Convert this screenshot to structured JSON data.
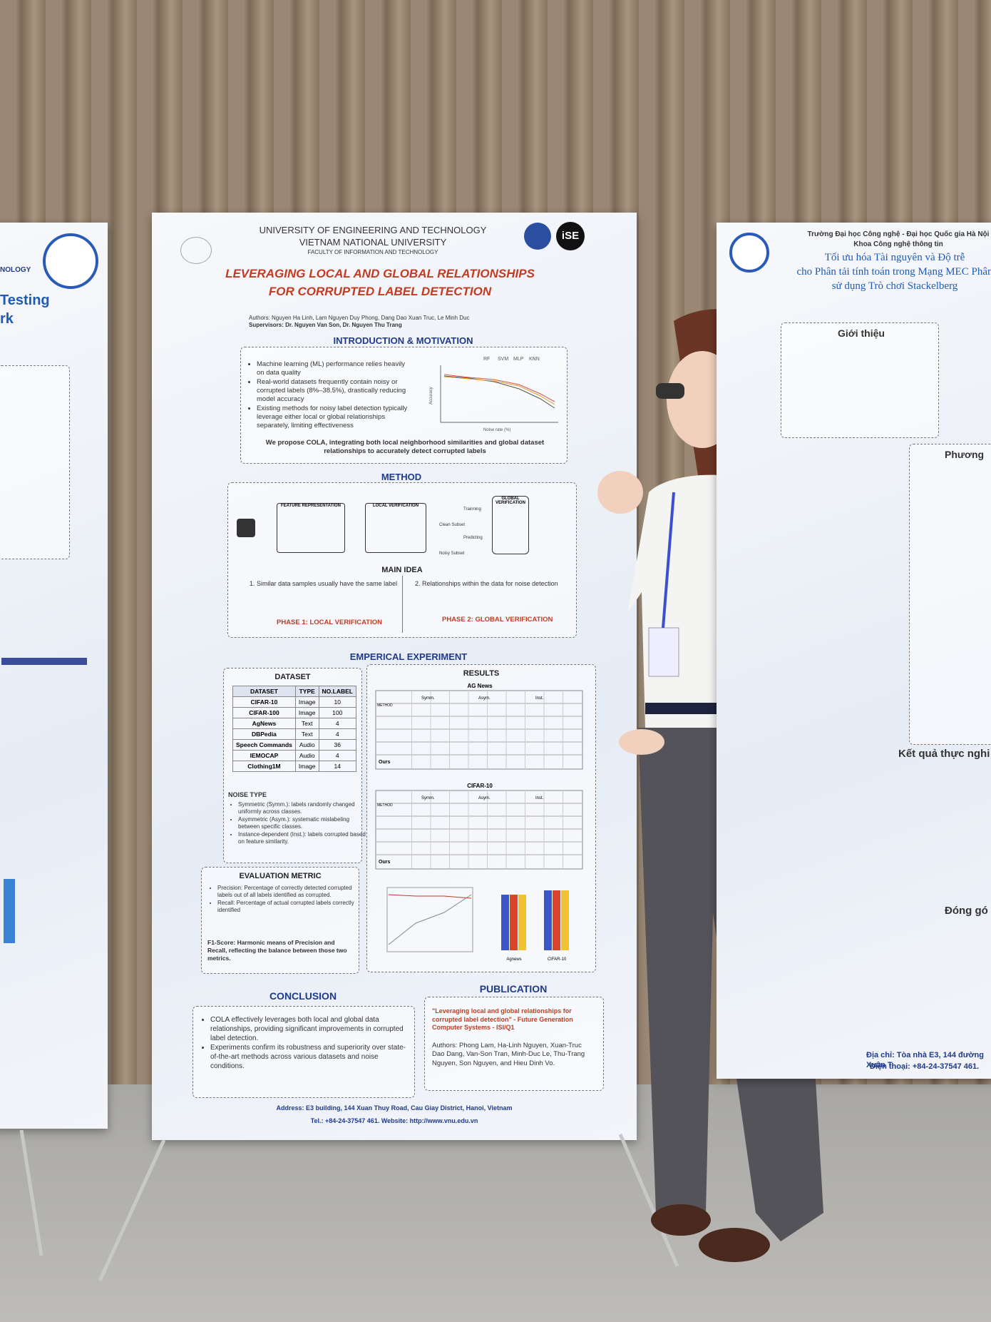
{
  "left_poster": {
    "org": "NOLOGY",
    "title_lines": [
      "Testing",
      "rk"
    ]
  },
  "main_poster": {
    "header": {
      "university": "UNIVERSITY OF ENGINEERING AND TECHNOLOGY",
      "parent": "VIETNAM NATIONAL UNIVERSITY",
      "faculty": "FACULTY OF INFORMATION AND TECHNOLOGY",
      "logo": "iSE"
    },
    "title_lines": [
      "LEVERAGING LOCAL AND GLOBAL RELATIONSHIPS",
      "FOR CORRUPTED LABEL DETECTION"
    ],
    "authors": "Authors: Nguyen Ha Linh, Lam Nguyen Duy Phong, Dang Dao Xuan Truc, Le Minh Duc",
    "supervisors": "Supervisors: Dr. Nguyen Van Son, Dr. Nguyen Thu Trang",
    "intro": {
      "heading": "INTRODUCTION & MOTIVATION",
      "bullets": [
        "Machine learning (ML) performance relies heavily on data quality",
        "Real-world datasets frequently contain noisy or corrupted labels (8%–38.5%), drastically reducing model accuracy",
        "Existing methods for noisy label detection typically leverage either local or global relationships separately, limiting effectiveness"
      ],
      "chart_legend": [
        "RF",
        "SVM",
        "MLP",
        "KNN"
      ],
      "chart_xlabel": "Noise rate (%)",
      "chart_ylabel": "Accuracy",
      "proposal": "We propose COLA, integrating both local neighborhood similarities and global dataset relationships to accurately detect corrupted labels"
    },
    "method": {
      "heading": "METHOD",
      "blocks": [
        "FEATURE REPRESENTATION",
        "LOCAL VERIFICATION",
        "GLOBAL VERIFICATION"
      ],
      "subsets": [
        "Clean Subset",
        "Noisy Subset"
      ],
      "arrows": [
        "Trainning",
        "Predicting"
      ],
      "main_idea": "MAIN IDEA",
      "ideas": [
        "1. Similar data samples usually have the same label",
        "2. Relationships within the data for noise detection"
      ],
      "phases": [
        "PHASE 1: LOCAL VERIFICATION",
        "PHASE 2: GLOBAL VERIFICATION"
      ]
    },
    "experiment": {
      "heading": "EMPERICAL EXPERIMENT",
      "dataset": {
        "heading": "DATASET",
        "columns": [
          "DATASET",
          "TYPE",
          "NO.LABEL"
        ],
        "rows": [
          [
            "CIFAR-10",
            "Image",
            "10"
          ],
          [
            "CIFAR-100",
            "Image",
            "100"
          ],
          [
            "AgNews",
            "Text",
            "4"
          ],
          [
            "DBPedia",
            "Text",
            "4"
          ],
          [
            "Speech Commands",
            "Audio",
            "36"
          ],
          [
            "IEMOCAP",
            "Audio",
            "4"
          ],
          [
            "Clothing1M",
            "Image",
            "14"
          ]
        ]
      },
      "noise": {
        "heading": "NOISE TYPE",
        "items": [
          "Symmetric (Symm.): labels randomly changed uniformly across classes.",
          "Asymmetric (Asym.): systematic mislabeling between specific classes.",
          "Instance-dependent (Inst.): labels corrupted based on feature similarity."
        ]
      },
      "results": {
        "heading": "RESULTS",
        "tables": [
          "AG News",
          "CIFAR-10"
        ],
        "method_col": "METHOD",
        "groups": [
          "Symm.",
          "Asym.",
          "Inst."
        ],
        "ours": "Ours",
        "bar_labels": [
          "Agnews",
          "CIFAR-10"
        ]
      },
      "metric": {
        "heading": "EVALUATION METRIC",
        "items": [
          "Precision: Percentage of correctly detected corrupted labels out of all labels identified as corrupted.",
          "Recall: Percentage of actual corrupted labels correctly identified"
        ],
        "f1": "F1-Score: Harmonic means of Precision and Recall, reflecting the balance between those two metrics."
      }
    },
    "conclusion": {
      "heading": "CONCLUSION",
      "bullets": [
        "COLA effectively leverages both local and global data relationships, providing significant improvements in corrupted label detection.",
        "Experiments confirm its robustness and superiority over state-of-the-art methods across various datasets and noise conditions."
      ]
    },
    "publication": {
      "heading": "PUBLICATION",
      "paper": "\"Leveraging local and global relationships for corrupted label detection\" - Future Generation Computer Systems - ISI/Q1",
      "authors": "Authors: Phong Lam, Ha-Linh Nguyen, Xuan-Truc Dao Dang, Van-Son Tran, Minh-Duc Le, Thu-Trang Nguyen, Son Nguyen, and Hieu Dinh Vo."
    },
    "footer": {
      "address": "Address: E3 building, 144 Xuan Thuy Road, Cau Giay District, Hanoi, Vietnam",
      "contact": "Tel.: +84-24-37547 461. Website: http://www.vnu.edu.vn"
    }
  },
  "right_poster": {
    "header": [
      "Trường Đại học Công nghệ - Đại học Quốc gia Hà Nội",
      "Khoa Công nghệ thông tin"
    ],
    "title_lines": [
      "Tối ưu hóa Tài nguyên và Độ trễ",
      "cho Phân tải tính toán trong Mạng MEC Phân",
      "sử dụng Trò chơi Stackelberg"
    ],
    "sections": [
      "Giới thiệu",
      "Phương",
      "Kết quả thực nghi",
      "Đóng gó"
    ],
    "footer": [
      "Địa chỉ: Tòa nhà E3, 144 đường Xuân T",
      "Điện thoại: +84-24-37547 461."
    ]
  }
}
